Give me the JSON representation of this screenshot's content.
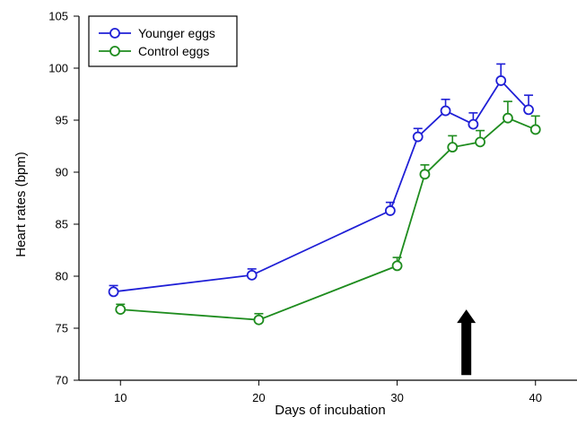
{
  "chart_data": {
    "type": "line",
    "xlabel": "Days of incubation",
    "ylabel": "Heart rates (bpm)",
    "xlim": [
      7,
      43
    ],
    "ylim": [
      70,
      105
    ],
    "xticks": [
      10,
      20,
      30,
      40
    ],
    "yticks": [
      70,
      75,
      80,
      85,
      90,
      95,
      100,
      105
    ],
    "grid": false,
    "legend_position": "top-left",
    "series": [
      {
        "name": "Younger eggs",
        "color": "#1f1fd6",
        "marker": "open-circle",
        "x": [
          9.5,
          19.5,
          29.5,
          31.5,
          33.5,
          35.5,
          37.5,
          39.5
        ],
        "y": [
          78.5,
          80.1,
          86.3,
          93.4,
          95.9,
          94.6,
          98.8,
          96.0
        ],
        "err": [
          0.6,
          0.6,
          0.8,
          0.8,
          1.1,
          1.1,
          1.6,
          1.4
        ]
      },
      {
        "name": "Control eggs",
        "color": "#1e8c1e",
        "marker": "open-circle",
        "x": [
          10,
          20,
          30,
          32,
          34,
          36,
          38,
          40
        ],
        "y": [
          76.8,
          75.8,
          81.0,
          89.8,
          92.4,
          92.9,
          95.2,
          94.1
        ],
        "err": [
          0.5,
          0.6,
          0.8,
          0.9,
          1.1,
          1.1,
          1.6,
          1.3
        ]
      }
    ],
    "annotation": {
      "type": "arrow",
      "direction": "up",
      "x": 35,
      "y_from": 70.5,
      "y_to": 76.8
    }
  }
}
